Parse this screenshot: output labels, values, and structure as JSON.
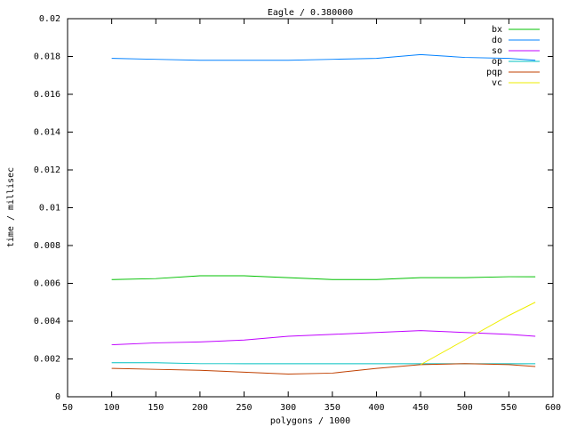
{
  "chart_data": {
    "type": "line",
    "title": "Eagle / 0.380000",
    "xlabel": "polygons / 1000",
    "ylabel": "time / millisec",
    "x": [
      100,
      150,
      200,
      250,
      300,
      350,
      400,
      450,
      500,
      550,
      580
    ],
    "series": [
      {
        "name": "bx",
        "color": "#00c000",
        "values": [
          0.0062,
          0.00625,
          0.0064,
          0.0064,
          0.0063,
          0.0062,
          0.0062,
          0.0063,
          0.0063,
          0.00635,
          0.00635
        ]
      },
      {
        "name": "do",
        "color": "#0080ff",
        "values": [
          0.0179,
          0.01785,
          0.0178,
          0.0178,
          0.0178,
          0.01785,
          0.0179,
          0.0181,
          0.01795,
          0.0179,
          0.0178
        ]
      },
      {
        "name": "so",
        "color": "#c000ff",
        "values": [
          0.00275,
          0.00285,
          0.0029,
          0.003,
          0.0032,
          0.0033,
          0.0034,
          0.0035,
          0.0034,
          0.0033,
          0.0032
        ]
      },
      {
        "name": "op",
        "color": "#00c0c0",
        "values": [
          0.0018,
          0.0018,
          0.00175,
          0.00175,
          0.00175,
          0.00175,
          0.00175,
          0.00175,
          0.00175,
          0.00175,
          0.00175
        ]
      },
      {
        "name": "pqp",
        "color": "#c04000",
        "values": [
          0.0015,
          0.00145,
          0.0014,
          0.0013,
          0.0012,
          0.00125,
          0.0015,
          0.0017,
          0.00175,
          0.0017,
          0.0016
        ]
      },
      {
        "name": "vc",
        "color": "#eeee00",
        "values": [
          null,
          null,
          null,
          null,
          null,
          null,
          null,
          0.0017,
          0.003,
          0.0043,
          0.005
        ]
      }
    ],
    "xlim": [
      50,
      600
    ],
    "xticks": [
      50,
      100,
      150,
      200,
      250,
      300,
      350,
      400,
      450,
      500,
      550,
      600
    ],
    "ylim": [
      0,
      0.02
    ],
    "yticks": [
      0,
      0.002,
      0.004,
      0.006,
      0.008,
      0.01,
      0.012,
      0.014,
      0.016,
      0.018,
      0.02
    ],
    "legend": "top-right"
  }
}
